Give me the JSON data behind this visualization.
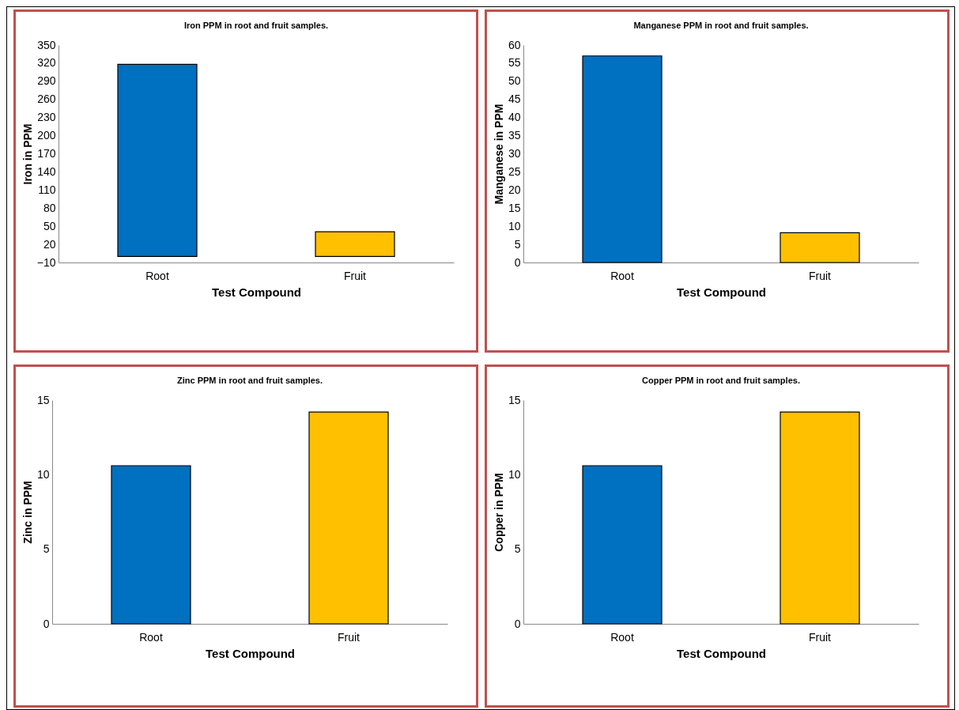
{
  "chart_data": [
    {
      "type": "bar",
      "title": "Iron PPM in root and fruit samples.",
      "xlabel": "Test Compound",
      "ylabel": "Iron in PPM",
      "categories": [
        "Root",
        "Fruit"
      ],
      "values": [
        318,
        41
      ],
      "colors": [
        "#0070c0",
        "#ffc000"
      ],
      "ylim": [
        -10,
        350
      ],
      "yticks": [
        -10,
        20,
        50,
        80,
        110,
        140,
        170,
        200,
        230,
        260,
        290,
        320,
        350
      ]
    },
    {
      "type": "bar",
      "title": "Manganese PPM in root and fruit samples.",
      "xlabel": "Test Compound",
      "ylabel": "Manganese in PPM",
      "categories": [
        "Root",
        "Fruit"
      ],
      "values": [
        57,
        8.2
      ],
      "colors": [
        "#0070c0",
        "#ffc000"
      ],
      "ylim": [
        0,
        60
      ],
      "yticks": [
        0,
        5,
        10,
        15,
        20,
        25,
        30,
        35,
        40,
        45,
        50,
        55,
        60
      ]
    },
    {
      "type": "bar",
      "title": "Zinc PPM in root and fruit samples.",
      "xlabel": "Test Compound",
      "ylabel": "Zinc in PPM",
      "categories": [
        "Root",
        "Fruit"
      ],
      "values": [
        10.6,
        14.2
      ],
      "colors": [
        "#0070c0",
        "#ffc000"
      ],
      "ylim": [
        0,
        15
      ],
      "yticks": [
        0,
        5,
        10,
        15
      ]
    },
    {
      "type": "bar",
      "title": "Copper PPM in root and fruit samples.",
      "xlabel": "Test Compound",
      "ylabel": "Copper  in PPM",
      "categories": [
        "Root",
        "Fruit"
      ],
      "values": [
        10.6,
        14.2
      ],
      "colors": [
        "#0070c0",
        "#ffc000"
      ],
      "ylim": [
        0,
        15
      ],
      "yticks": [
        0,
        5,
        10,
        15
      ]
    }
  ]
}
